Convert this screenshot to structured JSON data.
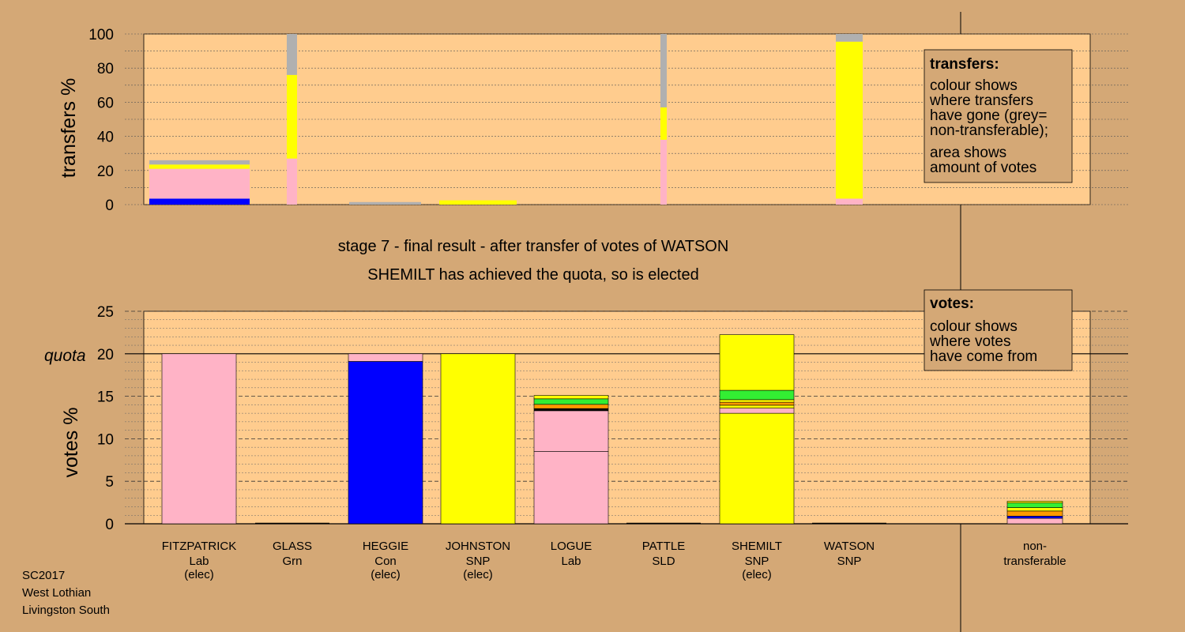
{
  "stage_title": "stage 7 - final result - after transfer of votes of WATSON",
  "stage_subtitle": "SHEMILT has achieved the quota, so is elected",
  "transfers_legend": {
    "heading": "transfers:",
    "lines1": [
      "colour shows",
      "where transfers",
      "have gone (grey=",
      "non-transferable);"
    ],
    "lines2": [
      "area shows",
      "amount of votes"
    ]
  },
  "votes_legend": {
    "heading": "votes:",
    "lines": [
      "colour shows",
      "where votes",
      "have come from"
    ]
  },
  "footer": [
    "SC2017",
    "West Lothian",
    "Livingston South"
  ],
  "colors": {
    "background": "#d4a876",
    "plot_area": "#ffcc8e",
    "lab": "#ffb3c6",
    "con": "#0000ff",
    "snp": "#ffff00",
    "grn": "#33ee33",
    "sld": "#ff9900",
    "non_transferable": "#b0b0b0",
    "black": "#000000"
  },
  "chart_data": [
    {
      "type": "bar",
      "stacked": true,
      "ylabel": "transfers %",
      "ylim": [
        0,
        100
      ],
      "yticks": [
        0,
        20,
        40,
        60,
        80,
        100
      ],
      "grid": true,
      "legend": "top-right",
      "note": "bar width proportional to size of transferred votes",
      "bars": [
        {
          "name": "FITZPATRICK",
          "width_share": 0.127,
          "segments": [
            {
              "to": "HEGGIE",
              "color": "con",
              "value": 3.5
            },
            {
              "to": "LOGUE",
              "color": "lab",
              "value": 17.5
            },
            {
              "to": "JOHNSTON/SHEMILT",
              "color": "snp",
              "value": 2.5
            },
            {
              "to": "non-transferable",
              "color": "non_transferable",
              "value": 2.5
            }
          ]
        },
        {
          "name": "GLASS",
          "width_share": 0.012,
          "segments": [
            {
              "to": "LOGUE",
              "color": "lab",
              "value": 27
            },
            {
              "to": "SHEMILT",
              "color": "snp",
              "value": 49
            },
            {
              "to": "non-transferable",
              "color": "non_transferable",
              "value": 24
            }
          ]
        },
        {
          "name": "HEGGIE",
          "width_share": 0.09,
          "segments": [
            {
              "to": "non-transferable",
              "color": "non_transferable",
              "value": 1.5
            }
          ]
        },
        {
          "name": "JOHNSTON",
          "width_share": 0.098,
          "segments": [
            {
              "to": "SHEMILT",
              "color": "snp",
              "value": 2.5
            }
          ]
        },
        {
          "name": "PATTLE",
          "width_share": 0.008,
          "segments": [
            {
              "to": "LOGUE",
              "color": "lab",
              "value": 38
            },
            {
              "to": "SHEMILT",
              "color": "snp",
              "value": 19
            },
            {
              "to": "non-transferable",
              "color": "non_transferable",
              "value": 43
            }
          ]
        },
        {
          "name": "WATSON",
          "width_share": 0.033,
          "segments": [
            {
              "to": "LOGUE",
              "color": "lab",
              "value": 3.5
            },
            {
              "to": "SHEMILT",
              "color": "snp",
              "value": 92
            },
            {
              "to": "non-transferable",
              "color": "non_transferable",
              "value": 4.5
            }
          ]
        }
      ]
    },
    {
      "type": "bar",
      "stacked": true,
      "ylabel": "votes %",
      "ylim": [
        0,
        25
      ],
      "yticks": [
        0,
        5,
        10,
        15,
        20,
        25
      ],
      "quota": 20,
      "quota_label": "quota",
      "grid": true,
      "legend": "top-right",
      "candidates": [
        {
          "name": "FITZPATRICK",
          "party": "Lab",
          "status": "(elec)",
          "segments": [
            {
              "color": "lab",
              "value": 20
            }
          ]
        },
        {
          "name": "GLASS",
          "party": "Grn",
          "status": "",
          "segments": []
        },
        {
          "name": "HEGGIE",
          "party": "Con",
          "status": "(elec)",
          "segments": [
            {
              "color": "con",
              "value": 19.1
            },
            {
              "color": "lab",
              "value": 0.9
            }
          ]
        },
        {
          "name": "JOHNSTON",
          "party": "SNP",
          "status": "(elec)",
          "segments": [
            {
              "color": "snp",
              "value": 20
            }
          ]
        },
        {
          "name": "LOGUE",
          "party": "Lab",
          "status": "",
          "segments": [
            {
              "color": "lab",
              "value": 8.5
            },
            {
              "color": "lab",
              "value": 4.8
            },
            {
              "color": "black",
              "value": 0.25
            },
            {
              "color": "sld",
              "value": 0.5
            },
            {
              "color": "grn",
              "value": 0.65
            },
            {
              "color": "snp",
              "value": 0.4
            }
          ]
        },
        {
          "name": "PATTLE",
          "party": "SLD",
          "status": "",
          "segments": []
        },
        {
          "name": "SHEMILT",
          "party": "SNP",
          "status": "(elec)",
          "segments": [
            {
              "color": "snp",
              "value": 13
            },
            {
              "color": "lab",
              "value": 0.6
            },
            {
              "color": "snp",
              "value": 0.35
            },
            {
              "color": "sld",
              "value": 0.35
            },
            {
              "color": "snp",
              "value": 0.3
            },
            {
              "color": "grn",
              "value": 1.1
            },
            {
              "color": "snp",
              "value": 6.55
            }
          ]
        },
        {
          "name": "WATSON",
          "party": "SNP",
          "status": "",
          "segments": []
        },
        {
          "name": "non-",
          "party": "transferable",
          "status": "",
          "segments": [
            {
              "color": "lab",
              "value": 0.65
            },
            {
              "color": "con",
              "value": 0.25
            },
            {
              "color": "sld",
              "value": 0.6
            },
            {
              "color": "snp",
              "value": 0.4
            },
            {
              "color": "grn",
              "value": 0.55
            },
            {
              "color": "snp",
              "value": 0.2
            }
          ]
        }
      ]
    }
  ]
}
